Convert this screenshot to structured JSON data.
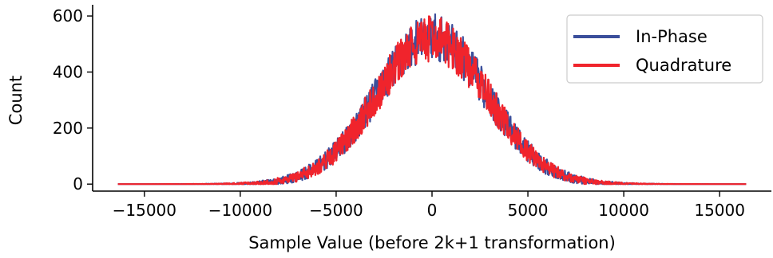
{
  "chart_data": {
    "type": "line",
    "xlabel": "Sample Value (before 2k+1 transformation)",
    "ylabel": "Count",
    "xlim": [
      -17700,
      17700
    ],
    "ylim": [
      -25,
      640
    ],
    "x_ticks": [
      -15000,
      -10000,
      -5000,
      0,
      5000,
      10000,
      15000
    ],
    "x_tick_labels": [
      "−15000",
      "−10000",
      "−5000",
      "0",
      "5000",
      "10000",
      "15000"
    ],
    "y_ticks": [
      0,
      200,
      400,
      600
    ],
    "y_tick_labels": [
      "0",
      "200",
      "400",
      "600"
    ],
    "x_range": [
      -16384,
      16384
    ],
    "grid": false,
    "legend_position": "top-right",
    "series": [
      {
        "name": "In-Phase",
        "color": "#3b4f9b",
        "description_values": {
          "peak_center": 0,
          "peak_mean": 525,
          "noise_band": [
            430,
            620
          ],
          "std_dev": 2900
        }
      },
      {
        "name": "Quadrature",
        "color": "#f0242c",
        "description_values": {
          "peak_center": 0,
          "peak_mean": 520,
          "noise_band": [
            440,
            615
          ],
          "std_dev": 2900
        }
      }
    ]
  }
}
